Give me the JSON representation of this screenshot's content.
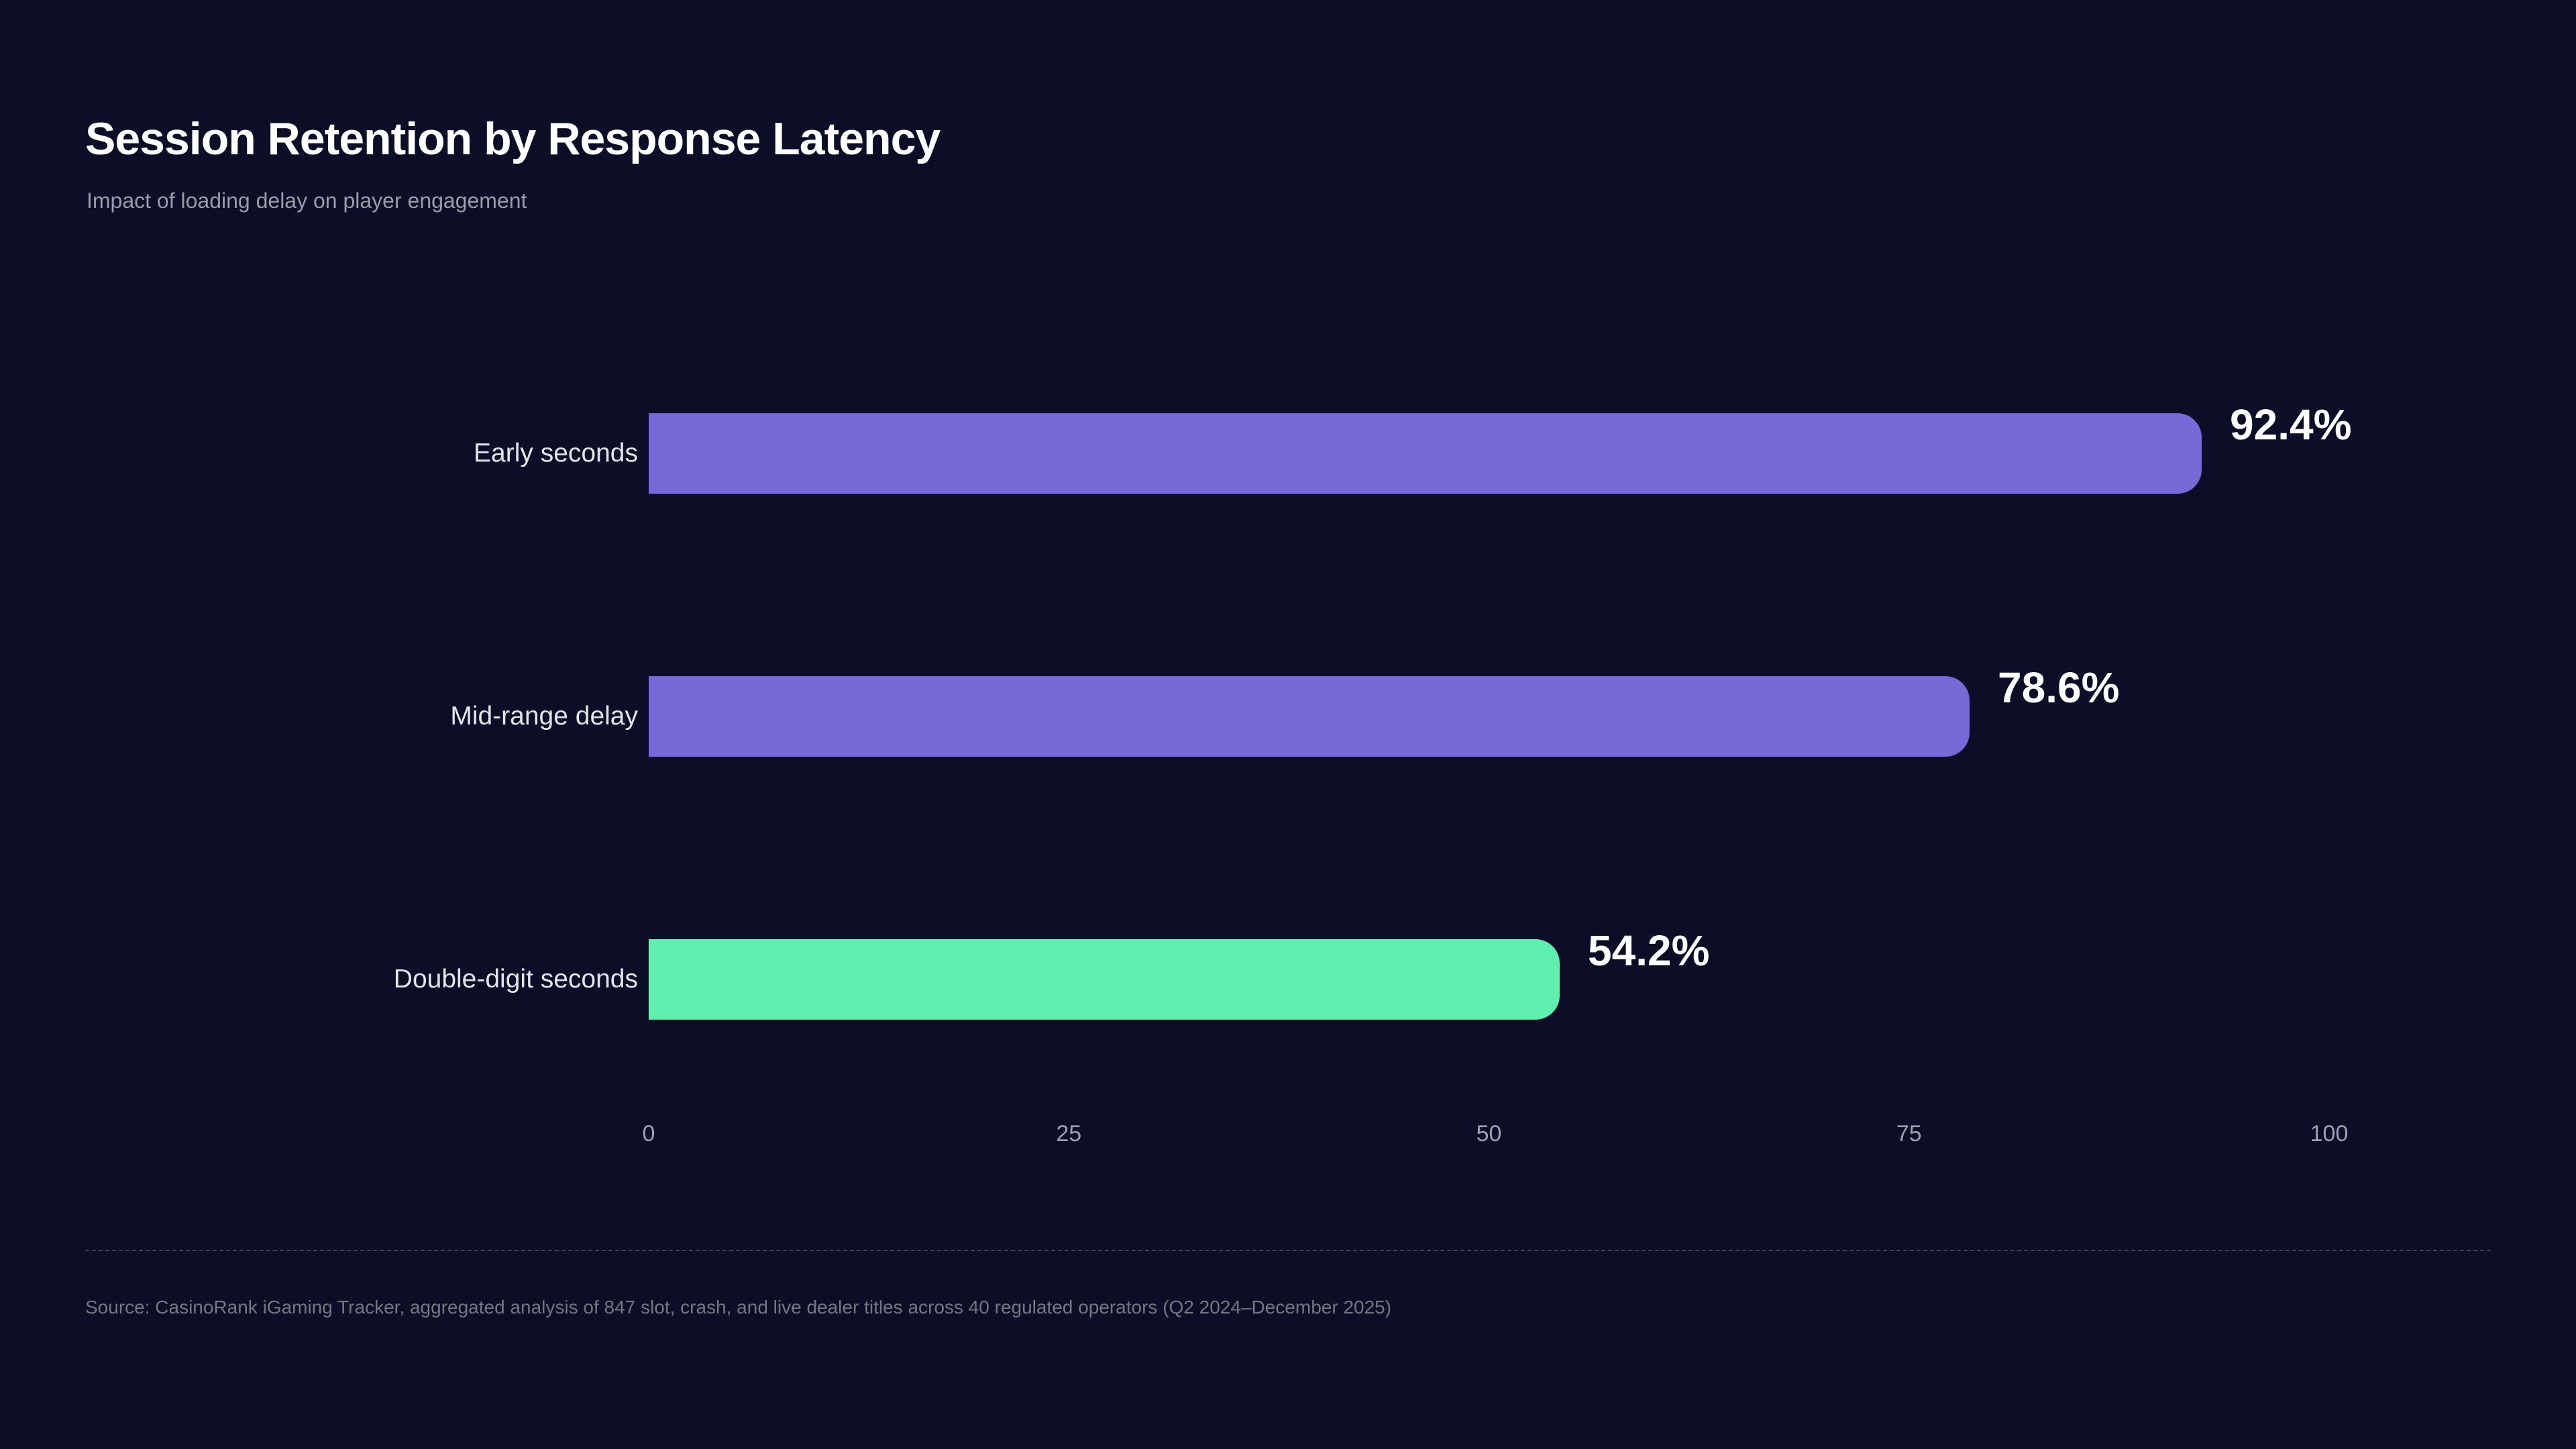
{
  "page": {
    "title": "Session Retention by Response Latency",
    "subtitle": "Impact of loading delay on player engagement",
    "source": "Source: CasinoRank iGaming Tracker, aggregated analysis of 847 slot, crash, and live dealer titles across 40 regulated operators (Q2 2024–December 2025)"
  },
  "colors": {
    "background": "#0c0e28",
    "bar_primary": "#7669d8",
    "bar_highlight": "#5ff0b0",
    "title_text": "#ffffff",
    "subtitle_text": "#9b9ca8",
    "category_text": "#e4e4ea",
    "value_text": "#ffffff",
    "tick_text": "#9fa0ad",
    "source_text": "#75767f",
    "divider": "#3d4058"
  },
  "chart_data": {
    "type": "bar",
    "orientation": "horizontal",
    "title": "Session Retention by Response Latency",
    "subtitle": "Impact of loading delay on player engagement",
    "categories": [
      "Early seconds",
      "Mid-range delay",
      "Double-digit seconds"
    ],
    "values": [
      92.4,
      78.6,
      54.2
    ],
    "value_labels": [
      "92.4%",
      "78.6%",
      "54.2%"
    ],
    "bar_colors": [
      "#7669d8",
      "#7669d8",
      "#5ff0b0"
    ],
    "xlabel": "",
    "ylabel": "",
    "xlim": [
      0,
      100
    ],
    "xticks": [
      0,
      25,
      50,
      75,
      100
    ],
    "grid": false,
    "legend": false
  }
}
